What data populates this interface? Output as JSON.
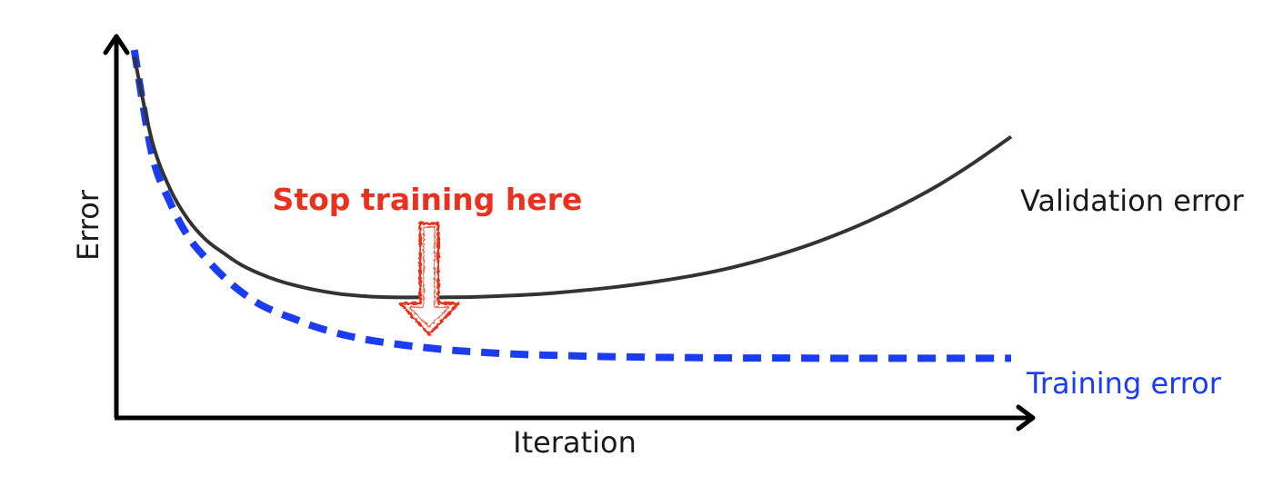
{
  "chart_data": {
    "type": "line",
    "xlabel": "Iteration",
    "ylabel": "Error",
    "xlim": [
      0,
      100
    ],
    "ylim": [
      0,
      100
    ],
    "series": [
      {
        "name": "Validation error",
        "color": "#333333",
        "style": "solid",
        "x": [
          2,
          4,
          6,
          8,
          10,
          12,
          14,
          16,
          18,
          20,
          22,
          25,
          28,
          31,
          34,
          37,
          40,
          44,
          48,
          52,
          56,
          60,
          64,
          68,
          72,
          76,
          80,
          84,
          88,
          92,
          96,
          100
        ],
        "y": [
          98,
          73,
          59,
          50,
          44,
          40,
          36.5,
          34,
          32,
          30.5,
          29.3,
          28,
          27.3,
          27,
          27,
          27,
          27.1,
          27.5,
          28.1,
          29,
          30.1,
          31.5,
          33.2,
          35.3,
          38,
          41.2,
          45,
          49.4,
          54.5,
          60.3,
          67,
          74.4
        ]
      },
      {
        "name": "Training error",
        "color": "#1a3cf5",
        "style": "dashed",
        "x": [
          2,
          4,
          6,
          8,
          10,
          12,
          14,
          16,
          18,
          20,
          22,
          25,
          28,
          31,
          34,
          37,
          40,
          45,
          50,
          55,
          60,
          65,
          70,
          75,
          80,
          85,
          90,
          95,
          100
        ],
        "y": [
          100,
          69,
          55,
          45,
          38.5,
          33,
          28.5,
          25,
          22.5,
          20.5,
          18.5,
          16.2,
          14.5,
          13.3,
          12.3,
          11.5,
          10.9,
          10.2,
          9.8,
          9.5,
          9.3,
          9.2,
          9.1,
          9.1,
          9,
          9,
          9,
          9,
          9
        ]
      }
    ],
    "series_labels": [
      "Validation error",
      "Training error"
    ],
    "annotation": {
      "text": "Stop training here",
      "x": 31,
      "color": "#e8321e"
    },
    "grid": false,
    "legend": "none"
  }
}
